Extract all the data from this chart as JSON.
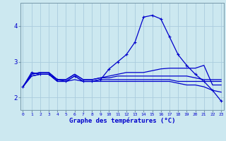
{
  "xlabel": "Graphe des températures (°C)",
  "background_color": "#cce8f0",
  "grid_color": "#aaccdd",
  "line_color": "#0000cc",
  "x": [
    0,
    1,
    2,
    3,
    4,
    5,
    6,
    7,
    8,
    9,
    10,
    11,
    12,
    13,
    14,
    15,
    16,
    17,
    18,
    19,
    20,
    21,
    22,
    23
  ],
  "curve1": [
    2.3,
    2.7,
    2.65,
    2.65,
    2.5,
    2.45,
    2.6,
    2.45,
    2.45,
    2.5,
    2.8,
    3.0,
    3.2,
    3.55,
    4.25,
    4.3,
    4.2,
    3.7,
    3.2,
    2.9,
    2.65,
    2.45,
    2.2,
    1.9
  ],
  "curve2": [
    2.3,
    2.65,
    2.7,
    2.7,
    2.5,
    2.5,
    2.65,
    2.5,
    2.5,
    2.55,
    2.6,
    2.65,
    2.7,
    2.7,
    2.7,
    2.75,
    2.8,
    2.82,
    2.82,
    2.82,
    2.82,
    2.9,
    2.35,
    2.35
  ],
  "curve3": [
    2.3,
    2.65,
    2.7,
    2.7,
    2.5,
    2.5,
    2.65,
    2.5,
    2.5,
    2.55,
    2.55,
    2.6,
    2.6,
    2.6,
    2.6,
    2.6,
    2.6,
    2.6,
    2.6,
    2.6,
    2.55,
    2.5,
    2.5,
    2.5
  ],
  "curve4": [
    2.3,
    2.6,
    2.65,
    2.65,
    2.45,
    2.45,
    2.6,
    2.45,
    2.45,
    2.5,
    2.5,
    2.5,
    2.5,
    2.5,
    2.5,
    2.5,
    2.5,
    2.5,
    2.45,
    2.45,
    2.45,
    2.45,
    2.45,
    2.45
  ],
  "curve5": [
    2.3,
    2.6,
    2.65,
    2.65,
    2.45,
    2.45,
    2.5,
    2.45,
    2.45,
    2.45,
    2.45,
    2.45,
    2.45,
    2.45,
    2.45,
    2.45,
    2.45,
    2.45,
    2.4,
    2.35,
    2.35,
    2.3,
    2.2,
    2.15
  ],
  "ylim": [
    1.65,
    4.65
  ],
  "yticks": [
    2,
    3,
    4
  ],
  "xticks": [
    0,
    1,
    2,
    3,
    4,
    5,
    6,
    7,
    8,
    9,
    10,
    11,
    12,
    13,
    14,
    15,
    16,
    17,
    18,
    19,
    20,
    21,
    22,
    23
  ],
  "xlim": [
    -0.3,
    23.3
  ]
}
